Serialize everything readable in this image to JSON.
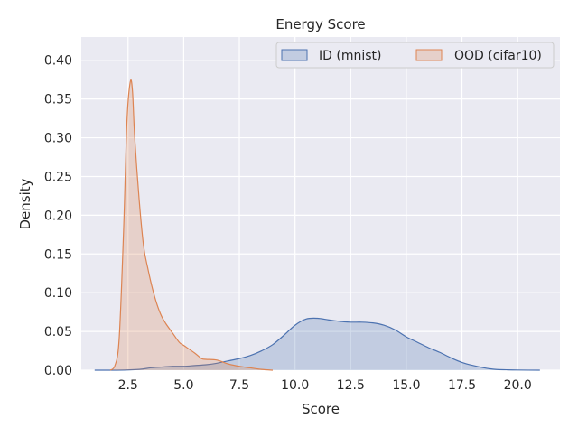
{
  "chart_data": {
    "type": "area",
    "title": "Energy Score",
    "xlabel": "Score",
    "ylabel": "Density",
    "xlim": [
      0.4,
      21.9
    ],
    "ylim": [
      0,
      0.43
    ],
    "x_ticks": [
      2.5,
      5.0,
      7.5,
      10.0,
      12.5,
      15.0,
      17.5,
      20.0
    ],
    "x_tick_labels": [
      "2.5",
      "5.0",
      "7.5",
      "10.0",
      "12.5",
      "15.0",
      "17.5",
      "20.0"
    ],
    "y_ticks": [
      0.0,
      0.05,
      0.1,
      0.15,
      0.2,
      0.25,
      0.3,
      0.35,
      0.4
    ],
    "y_tick_labels": [
      "0.00",
      "0.05",
      "0.10",
      "0.15",
      "0.20",
      "0.25",
      "0.30",
      "0.35",
      "0.40"
    ],
    "grid": true,
    "legend_position": "top-right",
    "series": [
      {
        "name": "ID (mnist)",
        "color": "#4c72b0",
        "x": [
          1.0,
          2.0,
          3.0,
          3.5,
          4.0,
          4.5,
          5.0,
          5.5,
          6.0,
          6.5,
          7.0,
          7.5,
          8.0,
          8.5,
          9.0,
          9.5,
          10.0,
          10.5,
          11.0,
          11.5,
          12.0,
          12.5,
          13.0,
          13.5,
          14.0,
          14.5,
          15.0,
          15.5,
          16.0,
          16.5,
          17.0,
          17.5,
          18.0,
          18.5,
          19.0,
          19.5,
          20.0,
          21.0
        ],
        "y": [
          0.0,
          0.0,
          0.001,
          0.003,
          0.004,
          0.005,
          0.005,
          0.006,
          0.007,
          0.009,
          0.012,
          0.015,
          0.019,
          0.025,
          0.033,
          0.045,
          0.058,
          0.066,
          0.067,
          0.065,
          0.063,
          0.062,
          0.062,
          0.061,
          0.058,
          0.052,
          0.043,
          0.036,
          0.029,
          0.023,
          0.016,
          0.01,
          0.006,
          0.003,
          0.001,
          0.0005,
          0.0002,
          0.0
        ]
      },
      {
        "name": "OOD (cifar10)",
        "color": "#dd8452",
        "x": [
          1.7,
          1.9,
          2.1,
          2.3,
          2.45,
          2.6,
          2.7,
          2.8,
          3.0,
          3.2,
          3.4,
          3.6,
          3.8,
          4.0,
          4.2,
          4.5,
          4.8,
          5.0,
          5.5,
          5.8,
          6.0,
          6.5,
          7.0,
          7.5,
          8.0,
          8.5,
          9.0
        ],
        "y": [
          0.0,
          0.005,
          0.04,
          0.18,
          0.32,
          0.372,
          0.36,
          0.3,
          0.22,
          0.16,
          0.13,
          0.105,
          0.085,
          0.07,
          0.06,
          0.048,
          0.036,
          0.032,
          0.022,
          0.015,
          0.014,
          0.013,
          0.008,
          0.005,
          0.003,
          0.001,
          0.0
        ]
      }
    ]
  }
}
